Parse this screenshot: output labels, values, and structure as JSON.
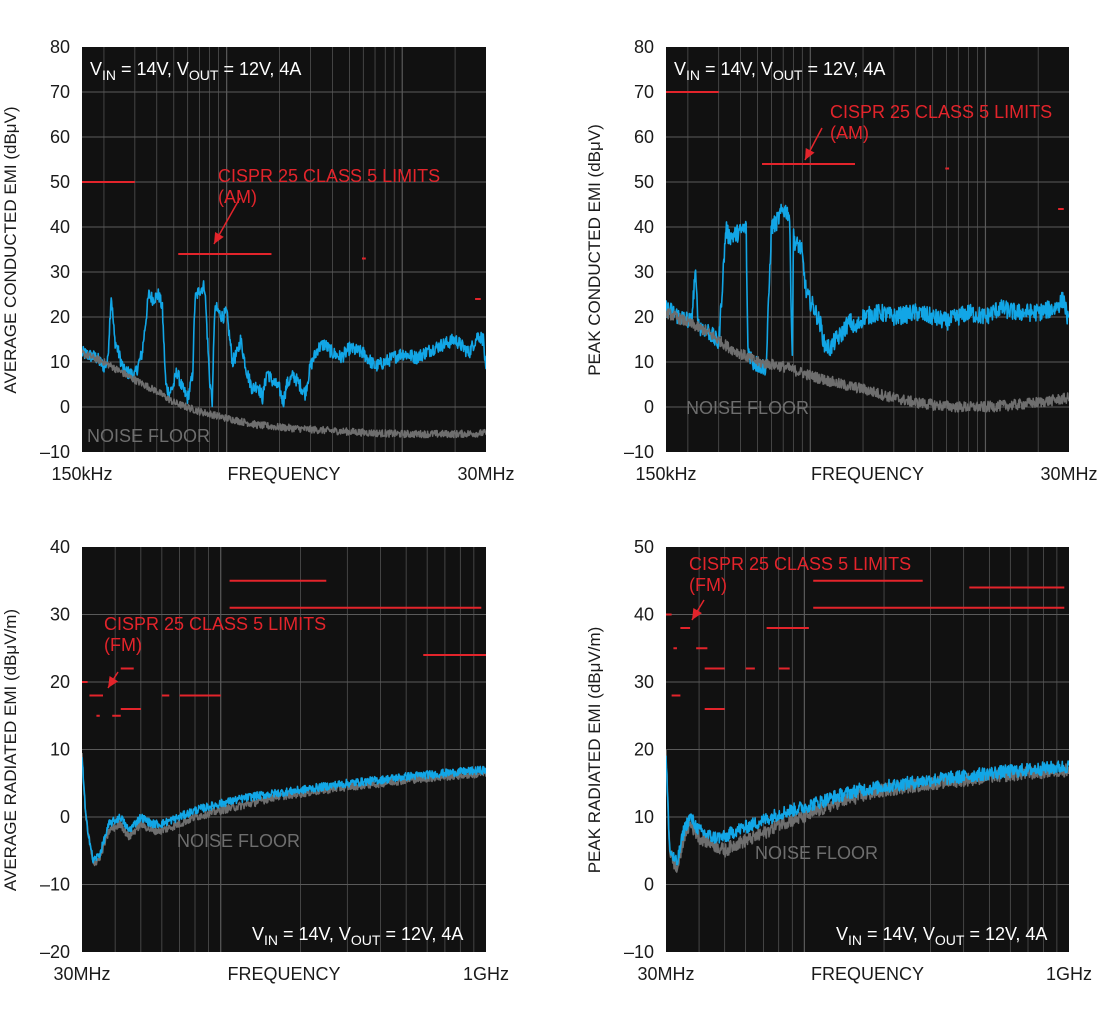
{
  "colors": {
    "plot_background": "#111111",
    "grid": "#5a5a5a",
    "limit": "#e3242b",
    "signal": "#12a6e6",
    "noise_floor": "#6e6e6e"
  },
  "chart_data": [
    {
      "type": "line",
      "ylabel": "AVERAGE CONDUCTED EMI (dBμV)",
      "xlabel": "FREQUENCY",
      "x_scale": "log",
      "x_range_hz": [
        150000,
        30000000
      ],
      "x_tick_labels": {
        "left": "150kHz",
        "right": "30MHz"
      },
      "ylim": [
        -10,
        80
      ],
      "y_ticks": [
        -10,
        0,
        10,
        20,
        30,
        40,
        50,
        60,
        70,
        80
      ],
      "y_tick_labels": [
        "–10",
        "0",
        "10",
        "20",
        "30",
        "40",
        "50",
        "60",
        "70",
        "80"
      ],
      "grid": true,
      "conditions": {
        "vin_pre": "V",
        "vin_sub": "IN",
        "vin_post": " = 14V, V",
        "vout_sub": "OUT",
        "vout_post": " = 12V, 4A"
      },
      "limit_annotation": {
        "line1": "CISPR 25 CLASS 5 LIMITS",
        "line2": "(AM)"
      },
      "noise_floor_label": "NOISE FLOOR",
      "limits": [
        {
          "x": [
            150000,
            300000
          ],
          "y": 50
        },
        {
          "x": [
            530000,
            1800000
          ],
          "y": 34
        },
        {
          "x": [
            5900000,
            6200000
          ],
          "y": 33
        },
        {
          "x": [
            26000000,
            28000000
          ],
          "y": 24
        }
      ],
      "series": [
        {
          "role": "signal",
          "jitter": 1.5,
          "x": [
            150000,
            180000,
            200000,
            210000,
            220000,
            230000,
            260000,
            300000,
            330000,
            360000,
            380000,
            410000,
            430000,
            450000,
            470000,
            500000,
            520000,
            560000,
            600000,
            640000,
            660000,
            700000,
            750000,
            800000,
            830000,
            850000,
            870000,
            900000,
            950000,
            1000000,
            1080000,
            1150000,
            1200000,
            1300000,
            1400000,
            1500000,
            1600000,
            1700000,
            1800000,
            2000000,
            2100000,
            2200000,
            2400000,
            2600000,
            2800000,
            3000000,
            3300000,
            3600000,
            4000000,
            4500000,
            5000000,
            6000000,
            7000000,
            8000000,
            10000000,
            12000000,
            15000000,
            20000000,
            24000000,
            27000000,
            29000000,
            30000000
          ],
          "y": [
            12,
            11,
            9,
            10,
            25,
            15,
            8,
            7,
            12,
            25,
            24,
            25,
            22,
            5,
            3,
            5,
            8,
            4,
            2,
            7,
            24,
            26,
            27,
            6,
            1,
            20,
            22,
            21,
            20,
            21,
            10,
            12,
            15,
            8,
            4,
            5,
            2,
            8,
            6,
            4,
            1,
            5,
            7,
            5,
            3,
            9,
            13,
            14,
            12,
            11,
            13,
            12,
            9,
            10,
            12,
            11,
            13,
            15,
            12,
            16,
            15,
            7
          ]
        },
        {
          "role": "noise",
          "jitter": 0.8,
          "x": [
            150000,
            200000,
            300000,
            400000,
            500000,
            700000,
            1000000,
            1500000,
            2000000,
            3000000,
            5000000,
            7000000,
            10000000,
            15000000,
            20000000,
            30000000
          ],
          "y": [
            12,
            10,
            6,
            3.5,
            1,
            -1,
            -2.5,
            -4,
            -4.5,
            -5,
            -5.5,
            -5.8,
            -6,
            -6,
            -6,
            -5.8
          ]
        }
      ]
    },
    {
      "type": "line",
      "ylabel": "PEAK CONDUCTED EMI (dBμV)",
      "xlabel": "FREQUENCY",
      "x_scale": "log",
      "x_range_hz": [
        150000,
        30000000
      ],
      "x_tick_labels": {
        "left": "150kHz",
        "right": "30MHz"
      },
      "ylim": [
        -10,
        80
      ],
      "y_ticks": [
        -10,
        0,
        10,
        20,
        30,
        40,
        50,
        60,
        70,
        80
      ],
      "y_tick_labels": [
        "–10",
        "0",
        "10",
        "20",
        "30",
        "40",
        "50",
        "60",
        "70",
        "80"
      ],
      "grid": true,
      "conditions": {
        "vin_pre": "V",
        "vin_sub": "IN",
        "vout_post": " = 12V, 4A",
        "vin_post": " = 14V, V",
        "vout_sub": "OUT"
      },
      "limit_annotation": {
        "line1": "CISPR 25 CLASS 5 LIMITS",
        "line2": "(AM)"
      },
      "noise_floor_label": "NOISE FLOOR",
      "limits": [
        {
          "x": [
            150000,
            300000
          ],
          "y": 70
        },
        {
          "x": [
            530000,
            1800000
          ],
          "y": 54
        },
        {
          "x": [
            5900000,
            6200000
          ],
          "y": 53
        },
        {
          "x": [
            26000000,
            28000000
          ],
          "y": 44
        }
      ],
      "series": [
        {
          "role": "signal",
          "jitter": 2,
          "x": [
            150000,
            180000,
            210000,
            220000,
            230000,
            260000,
            300000,
            330000,
            340000,
            360000,
            400000,
            430000,
            440000,
            470000,
            530000,
            560000,
            600000,
            640000,
            660000,
            700000,
            760000,
            790000,
            800000,
            830000,
            860000,
            890000,
            950000,
            1050000,
            1100000,
            1150000,
            1200000,
            1300000,
            1400000,
            1500000,
            1600000,
            1700000,
            1800000,
            2000000,
            2500000,
            3000000,
            4000000,
            5000000,
            6000000,
            8000000,
            10000000,
            12000000,
            15000000,
            20000000,
            25000000,
            28000000,
            30000000
          ],
          "y": [
            22,
            20,
            19,
            30,
            18,
            17,
            14,
            40,
            38,
            38,
            39,
            40,
            13,
            10,
            9,
            9,
            40,
            41,
            42,
            44,
            43,
            10,
            38,
            36,
            36,
            35,
            25,
            22,
            20,
            18,
            14,
            13,
            15,
            16,
            18,
            19,
            17,
            20,
            21,
            20,
            21,
            20,
            19,
            21,
            20,
            22,
            21,
            21,
            22,
            24,
            18
          ]
        },
        {
          "role": "noise",
          "jitter": 1.2,
          "x": [
            150000,
            250000,
            350000,
            500000,
            700000,
            1000000,
            1500000,
            2000000,
            3000000,
            4000000,
            5000000,
            7000000,
            10000000,
            15000000,
            20000000,
            30000000
          ],
          "y": [
            21,
            17,
            13,
            10,
            9,
            7,
            5,
            4,
            2,
            1,
            0.5,
            0,
            0,
            0.5,
            1,
            2
          ]
        }
      ]
    },
    {
      "type": "line",
      "ylabel": "AVERAGE RADIATED EMI (dBμV/m)",
      "xlabel": "FREQUENCY",
      "x_scale": "log",
      "x_range_hz": [
        30000000,
        1000000000
      ],
      "x_tick_labels": {
        "left": "30MHz",
        "right": "1GHz"
      },
      "ylim": [
        -20,
        40
      ],
      "y_ticks": [
        -20,
        -10,
        0,
        10,
        20,
        30,
        40
      ],
      "y_tick_labels": [
        "–20",
        "–10",
        "0",
        "10",
        "20",
        "30",
        "40"
      ],
      "grid": true,
      "conditions": {
        "vin_pre": "V",
        "vin_sub": "IN",
        "vin_post": " = 14V, V",
        "vout_sub": "OUT",
        "vout_post": " = 12V, 4A"
      },
      "limit_annotation": {
        "line1": "CISPR 25 CLASS 5 LIMITS",
        "line2": "(FM)"
      },
      "noise_floor_label": "NOISE FLOOR",
      "limits": [
        {
          "x": [
            30000000,
            31500000
          ],
          "y": 20
        },
        {
          "x": [
            32000000,
            36000000
          ],
          "y": 18
        },
        {
          "x": [
            34000000,
            35000000
          ],
          "y": 15
        },
        {
          "x": [
            39000000,
            42000000
          ],
          "y": 15
        },
        {
          "x": [
            42000000,
            47000000
          ],
          "y": 22
        },
        {
          "x": [
            42000000,
            50000000
          ],
          "y": 16
        },
        {
          "x": [
            60000000,
            64000000
          ],
          "y": 18
        },
        {
          "x": [
            70000000,
            100000000
          ],
          "y": 18
        },
        {
          "x": [
            108000000,
            250000000
          ],
          "y": 35
        },
        {
          "x": [
            108000000,
            960000000
          ],
          "y": 31
        },
        {
          "x": [
            580000000,
            1000000000
          ],
          "y": 24
        }
      ],
      "series": [
        {
          "role": "noise",
          "jitter": 0.6,
          "x": [
            30000000,
            31000000,
            33000000,
            35000000,
            38000000,
            42000000,
            45000000,
            50000000,
            55000000,
            60000000,
            70000000,
            80000000,
            100000000,
            130000000,
            160000000,
            200000000,
            300000000,
            400000000,
            500000000,
            700000000,
            1000000000
          ],
          "y": [
            9,
            0,
            -7,
            -6,
            -2,
            -1,
            -3,
            -1,
            -2,
            -2,
            -1,
            0,
            1,
            2,
            3,
            3.5,
            4.5,
            5,
            5.5,
            6,
            6.5
          ]
        },
        {
          "role": "signal",
          "jitter": 0.6,
          "x": [
            30000000,
            31000000,
            33000000,
            35000000,
            38000000,
            42000000,
            45000000,
            50000000,
            55000000,
            60000000,
            70000000,
            80000000,
            100000000,
            130000000,
            160000000,
            200000000,
            300000000,
            400000000,
            500000000,
            700000000,
            1000000000
          ],
          "y": [
            9,
            0,
            -6.5,
            -5.5,
            -1,
            0,
            -2,
            0,
            -1,
            -1,
            0,
            1,
            2,
            3,
            3.5,
            4,
            5,
            5.5,
            6,
            6.5,
            7
          ]
        }
      ]
    },
    {
      "type": "line",
      "ylabel": "PEAK RADIATED EMI (dBμV/m)",
      "xlabel": "FREQUENCY",
      "x_scale": "log",
      "x_range_hz": [
        30000000,
        1000000000
      ],
      "x_tick_labels": {
        "left": "30MHz",
        "right": "1GHz"
      },
      "ylim": [
        -10,
        50
      ],
      "y_ticks": [
        -10,
        0,
        10,
        20,
        30,
        40,
        50
      ],
      "y_tick_labels": [
        "–10",
        "0",
        "10",
        "20",
        "30",
        "40",
        "50"
      ],
      "grid": true,
      "conditions": {
        "vin_pre": "V",
        "vin_sub": "IN",
        "vin_post": " = 14V, V",
        "vout_sub": "OUT",
        "vout_post": " = 12V, 4A"
      },
      "limit_annotation": {
        "line1": "CISPR 25 CLASS 5 LIMITS",
        "line2": "(FM)"
      },
      "noise_floor_label": "NOISE FLOOR",
      "limits": [
        {
          "x": [
            30000000,
            31500000
          ],
          "y": 40
        },
        {
          "x": [
            31500000,
            34000000
          ],
          "y": 28
        },
        {
          "x": [
            32000000,
            33000000
          ],
          "y": 35
        },
        {
          "x": [
            34000000,
            37000000
          ],
          "y": 38
        },
        {
          "x": [
            39000000,
            43000000
          ],
          "y": 35
        },
        {
          "x": [
            42000000,
            50000000
          ],
          "y": 32
        },
        {
          "x": [
            42000000,
            50000000
          ],
          "y": 26
        },
        {
          "x": [
            60000000,
            65000000
          ],
          "y": 32
        },
        {
          "x": [
            72000000,
            104000000
          ],
          "y": 38
        },
        {
          "x": [
            80000000,
            88000000
          ],
          "y": 32
        },
        {
          "x": [
            108000000,
            280000000
          ],
          "y": 45
        },
        {
          "x": [
            108000000,
            960000000
          ],
          "y": 41
        },
        {
          "x": [
            420000000,
            960000000
          ],
          "y": 44
        }
      ],
      "series": [
        {
          "role": "noise",
          "jitter": 1,
          "x": [
            30000000,
            31000000,
            33000000,
            35000000,
            37000000,
            40000000,
            45000000,
            50000000,
            55000000,
            60000000,
            70000000,
            80000000,
            100000000,
            130000000,
            160000000,
            200000000,
            300000000,
            400000000,
            500000000,
            700000000,
            1000000000
          ],
          "y": [
            19,
            5,
            2,
            7,
            9,
            7,
            6,
            5,
            6,
            6.5,
            7.5,
            9,
            10,
            12,
            13,
            14,
            15,
            15.5,
            16,
            16.5,
            17
          ]
        },
        {
          "role": "signal",
          "jitter": 1,
          "x": [
            30000000,
            31000000,
            33000000,
            35000000,
            37000000,
            40000000,
            45000000,
            50000000,
            55000000,
            60000000,
            70000000,
            80000000,
            100000000,
            130000000,
            160000000,
            200000000,
            300000000,
            400000000,
            500000000,
            700000000,
            1000000000
          ],
          "y": [
            19,
            5,
            3,
            8,
            10,
            8,
            7,
            7,
            8,
            8.5,
            9.5,
            10.5,
            11.5,
            13,
            14,
            14.5,
            15.5,
            16,
            16.5,
            17,
            17.5
          ]
        }
      ]
    }
  ]
}
